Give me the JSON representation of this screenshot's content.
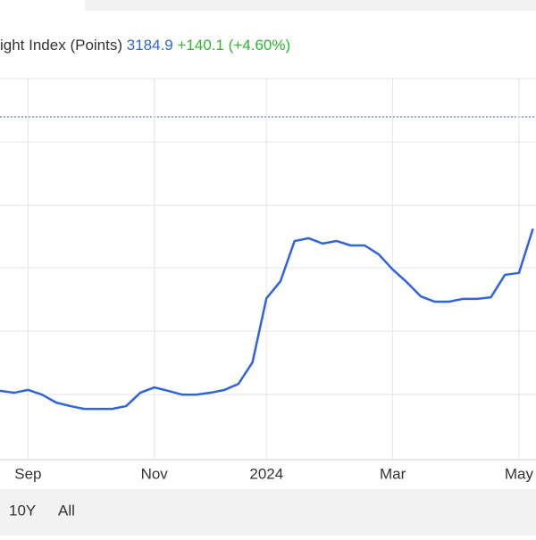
{
  "chart_data": {
    "type": "line",
    "title": "ight Index (Points)",
    "last": 3184.9,
    "change": "+140.1 (+4.60%)",
    "categories": [
      null,
      null,
      "Sep",
      null,
      null,
      null,
      null,
      null,
      null,
      null,
      null,
      "Nov",
      null,
      null,
      null,
      null,
      null,
      null,
      null,
      "2024",
      null,
      null,
      null,
      null,
      null,
      null,
      null,
      null,
      "Mar",
      null,
      null,
      null,
      null,
      null,
      null,
      null,
      null,
      "May",
      null
    ],
    "series": [
      {
        "name": null,
        "color": "#2f63e0",
        "values": [
          2672,
          2666,
          2675,
          2660,
          2635,
          2624,
          2615,
          2615,
          2615,
          2624,
          2666,
          2683,
          2672,
          2660,
          2660,
          2666,
          2675,
          2694,
          2762,
          2965,
          3019,
          3146,
          3155,
          3138,
          3146,
          3132,
          3132,
          3104,
          3056,
          3016,
          2971,
          2954,
          2954,
          2963,
          2963,
          2968,
          3039,
          3045,
          3185
        ]
      }
    ],
    "ylim": [
      2460,
      3660
    ]
  },
  "controls": [
    "10Y",
    "All"
  ]
}
